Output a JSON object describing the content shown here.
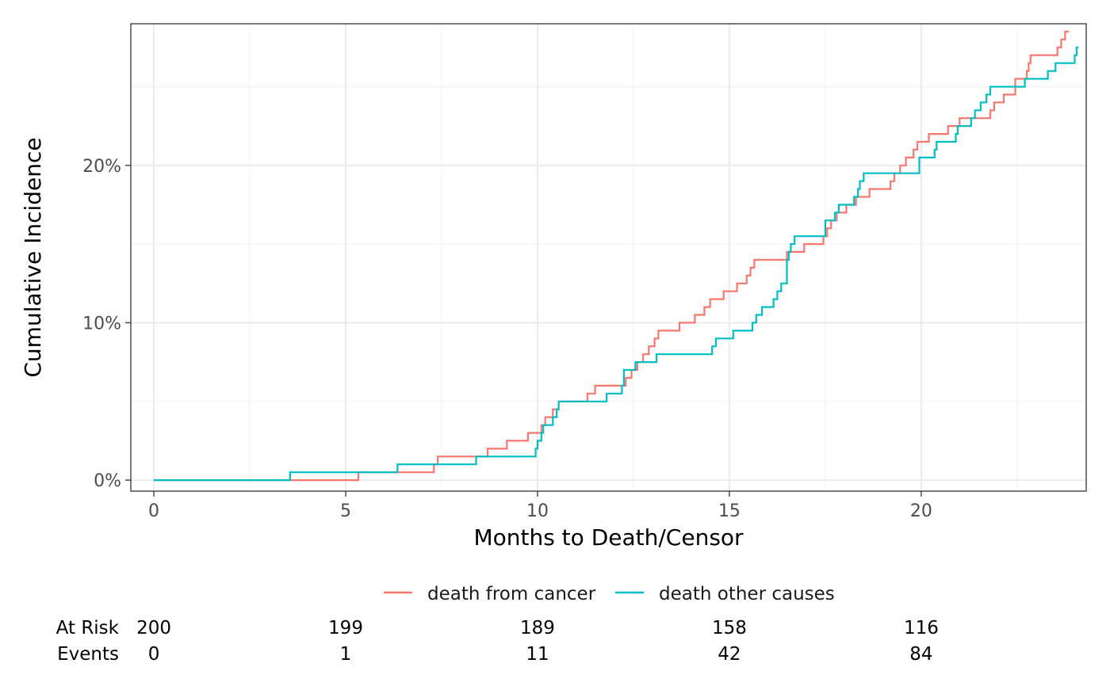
{
  "chart_data": {
    "type": "line",
    "step": true,
    "xlabel": "Months to Death/Censor",
    "ylabel": "Cumulative Incidence",
    "xlim": [
      -0.6,
      24.3
    ],
    "ylim": [
      -0.007,
      0.29
    ],
    "x_ticks": [
      0,
      5,
      10,
      15,
      20
    ],
    "x_tick_labels": [
      "0",
      "5",
      "10",
      "15",
      "20"
    ],
    "y_ticks": [
      0,
      0.1,
      0.2
    ],
    "y_tick_labels": [
      "0%",
      "10%",
      "20%"
    ],
    "grid": true,
    "legend_position": "bottom",
    "colors": {
      "death from cancer": "#F8766D",
      "death other causes": "#00BFC4"
    },
    "series": [
      {
        "name": "death from cancer",
        "color": "#F8766D",
        "points": [
          [
            0,
            0
          ],
          [
            5.33,
            0.005
          ],
          [
            7.3,
            0.01
          ],
          [
            7.4,
            0.015
          ],
          [
            8.7,
            0.02
          ],
          [
            9.2,
            0.025
          ],
          [
            9.75,
            0.03
          ],
          [
            10.1,
            0.035
          ],
          [
            10.2,
            0.04
          ],
          [
            10.4,
            0.045
          ],
          [
            10.55,
            0.05
          ],
          [
            11.3,
            0.055
          ],
          [
            11.5,
            0.06
          ],
          [
            12.3,
            0.065
          ],
          [
            12.45,
            0.07
          ],
          [
            12.6,
            0.075
          ],
          [
            12.75,
            0.08
          ],
          [
            12.9,
            0.085
          ],
          [
            13.05,
            0.09
          ],
          [
            13.15,
            0.095
          ],
          [
            13.7,
            0.1
          ],
          [
            14.1,
            0.105
          ],
          [
            14.35,
            0.11
          ],
          [
            14.5,
            0.115
          ],
          [
            14.85,
            0.12
          ],
          [
            15.2,
            0.125
          ],
          [
            15.45,
            0.13
          ],
          [
            15.55,
            0.135
          ],
          [
            15.65,
            0.14
          ],
          [
            16.5,
            0.145
          ],
          [
            16.95,
            0.15
          ],
          [
            17.45,
            0.155
          ],
          [
            17.55,
            0.16
          ],
          [
            17.65,
            0.165
          ],
          [
            17.8,
            0.17
          ],
          [
            18.05,
            0.175
          ],
          [
            18.3,
            0.18
          ],
          [
            18.65,
            0.185
          ],
          [
            19.2,
            0.19
          ],
          [
            19.3,
            0.195
          ],
          [
            19.45,
            0.2
          ],
          [
            19.6,
            0.205
          ],
          [
            19.8,
            0.21
          ],
          [
            19.9,
            0.215
          ],
          [
            20.2,
            0.22
          ],
          [
            20.7,
            0.225
          ],
          [
            21.0,
            0.23
          ],
          [
            21.8,
            0.235
          ],
          [
            21.9,
            0.24
          ],
          [
            22.15,
            0.245
          ],
          [
            22.45,
            0.255
          ],
          [
            22.75,
            0.26
          ],
          [
            22.8,
            0.265
          ],
          [
            22.85,
            0.27
          ],
          [
            23.55,
            0.275
          ],
          [
            23.65,
            0.28
          ],
          [
            23.75,
            0.285
          ],
          [
            23.85,
            0.285
          ]
        ]
      },
      {
        "name": "death other causes",
        "color": "#00BFC4",
        "points": [
          [
            0,
            0
          ],
          [
            3.55,
            0.005
          ],
          [
            6.35,
            0.01
          ],
          [
            8.4,
            0.015
          ],
          [
            9.95,
            0.02
          ],
          [
            10.0,
            0.025
          ],
          [
            10.1,
            0.03
          ],
          [
            10.15,
            0.035
          ],
          [
            10.4,
            0.04
          ],
          [
            10.5,
            0.045
          ],
          [
            10.55,
            0.05
          ],
          [
            11.8,
            0.055
          ],
          [
            12.2,
            0.06
          ],
          [
            12.25,
            0.07
          ],
          [
            12.55,
            0.075
          ],
          [
            13.1,
            0.08
          ],
          [
            14.55,
            0.085
          ],
          [
            14.65,
            0.09
          ],
          [
            15.1,
            0.095
          ],
          [
            15.6,
            0.1
          ],
          [
            15.7,
            0.105
          ],
          [
            15.85,
            0.11
          ],
          [
            16.15,
            0.115
          ],
          [
            16.25,
            0.12
          ],
          [
            16.35,
            0.125
          ],
          [
            16.5,
            0.14
          ],
          [
            16.55,
            0.145
          ],
          [
            16.6,
            0.15
          ],
          [
            16.7,
            0.155
          ],
          [
            17.5,
            0.165
          ],
          [
            17.75,
            0.17
          ],
          [
            17.85,
            0.175
          ],
          [
            18.25,
            0.18
          ],
          [
            18.35,
            0.185
          ],
          [
            18.4,
            0.19
          ],
          [
            18.5,
            0.195
          ],
          [
            19.95,
            0.205
          ],
          [
            20.35,
            0.21
          ],
          [
            20.4,
            0.215
          ],
          [
            20.9,
            0.22
          ],
          [
            20.95,
            0.225
          ],
          [
            21.3,
            0.23
          ],
          [
            21.4,
            0.235
          ],
          [
            21.55,
            0.24
          ],
          [
            21.7,
            0.245
          ],
          [
            21.8,
            0.25
          ],
          [
            22.7,
            0.255
          ],
          [
            23.3,
            0.26
          ],
          [
            23.5,
            0.265
          ],
          [
            24.0,
            0.27
          ],
          [
            24.05,
            0.275
          ],
          [
            24.1,
            0.275
          ]
        ]
      }
    ],
    "risk_table": {
      "times": [
        0,
        5,
        10,
        15,
        20
      ],
      "rows": [
        {
          "label": "At Risk",
          "values": [
            "200",
            "199",
            "189",
            "158",
            "116"
          ]
        },
        {
          "label": "Events",
          "values": [
            "0",
            "1",
            "11",
            "42",
            "84"
          ]
        }
      ]
    }
  }
}
